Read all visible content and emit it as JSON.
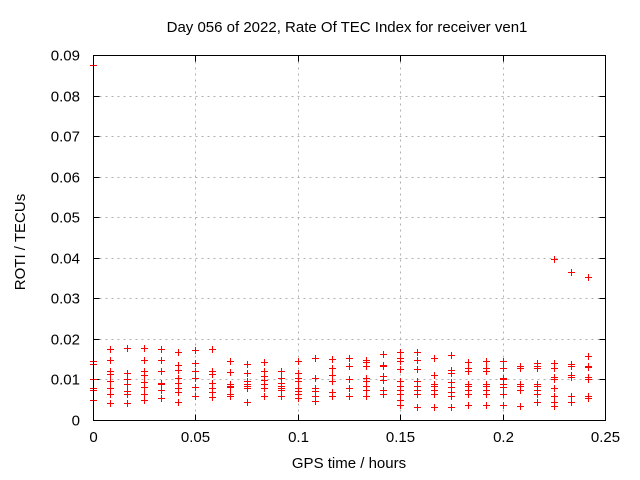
{
  "chart_data": {
    "type": "scatter",
    "title": "Day 056 of 2022, Rate Of TEC Index for receiver ven1",
    "xlabel": "GPS time / hours",
    "ylabel": "ROTI / TECUs",
    "xlim": [
      0,
      0.25
    ],
    "ylim": [
      0,
      0.09
    ],
    "xtick_values": [
      0,
      0.05,
      0.1,
      0.15,
      0.2,
      0.25
    ],
    "xtick_labels": [
      "0",
      "0.05",
      "0.1",
      "0.15",
      "0.2",
      "0.25"
    ],
    "ytick_values": [
      0,
      0.01,
      0.02,
      0.03,
      0.04,
      0.05,
      0.06,
      0.07,
      0.08,
      0.09
    ],
    "ytick_labels": [
      "0",
      "0.01",
      "0.02",
      "0.03",
      "0.04",
      "0.05",
      "0.06",
      "0.07",
      "0.08",
      "0.09"
    ],
    "grid": "dotted",
    "legend": "none",
    "marker": {
      "shape": "plus",
      "color": "#ff0000",
      "size": 7
    },
    "grid_color": "#b0b0b0",
    "border_color": "#000000",
    "points": [
      [
        0,
        0.0875
      ],
      [
        0,
        0.0145
      ],
      [
        0,
        0.0138
      ],
      [
        0,
        0.01
      ],
      [
        0,
        0.0078
      ],
      [
        0,
        0.0073
      ],
      [
        0,
        0.005
      ],
      [
        0.00833,
        0.0175
      ],
      [
        0.00833,
        0.0148
      ],
      [
        0.00833,
        0.012
      ],
      [
        0.00833,
        0.0114
      ],
      [
        0.00833,
        0.0095
      ],
      [
        0.00833,
        0.0078
      ],
      [
        0.00833,
        0.0063
      ],
      [
        0.00833,
        0.0042
      ],
      [
        0.01667,
        0.0177
      ],
      [
        0.01667,
        0.0117
      ],
      [
        0.01667,
        0.01
      ],
      [
        0.01667,
        0.0088
      ],
      [
        0.01667,
        0.0071
      ],
      [
        0.01667,
        0.0063
      ],
      [
        0.01667,
        0.0041
      ],
      [
        0.025,
        0.0177
      ],
      [
        0.025,
        0.0148
      ],
      [
        0.025,
        0.0122
      ],
      [
        0.025,
        0.011
      ],
      [
        0.025,
        0.0094
      ],
      [
        0.025,
        0.0082
      ],
      [
        0.025,
        0.0063
      ],
      [
        0.025,
        0.005
      ],
      [
        0.03333,
        0.0174
      ],
      [
        0.03333,
        0.0148
      ],
      [
        0.03333,
        0.0122
      ],
      [
        0.03333,
        0.0092
      ],
      [
        0.03333,
        0.0088
      ],
      [
        0.03333,
        0.0075
      ],
      [
        0.03333,
        0.0055
      ],
      [
        0.04167,
        0.0168
      ],
      [
        0.04167,
        0.0136
      ],
      [
        0.04167,
        0.0123
      ],
      [
        0.04167,
        0.0103
      ],
      [
        0.04167,
        0.0091
      ],
      [
        0.04167,
        0.008
      ],
      [
        0.04167,
        0.0068
      ],
      [
        0.04167,
        0.0045
      ],
      [
        0.05,
        0.0173
      ],
      [
        0.05,
        0.014
      ],
      [
        0.05,
        0.012
      ],
      [
        0.05,
        0.0103
      ],
      [
        0.05,
        0.0082
      ],
      [
        0.05,
        0.0058
      ],
      [
        0.05833,
        0.0175
      ],
      [
        0.05833,
        0.012
      ],
      [
        0.05833,
        0.0114
      ],
      [
        0.05833,
        0.0092
      ],
      [
        0.05833,
        0.0078
      ],
      [
        0.05833,
        0.0068
      ],
      [
        0.05833,
        0.0057
      ],
      [
        0.06667,
        0.0145
      ],
      [
        0.06667,
        0.0118
      ],
      [
        0.06667,
        0.009
      ],
      [
        0.06667,
        0.0085
      ],
      [
        0.06667,
        0.0082
      ],
      [
        0.06667,
        0.0063
      ],
      [
        0.06667,
        0.0058
      ],
      [
        0.075,
        0.0137
      ],
      [
        0.075,
        0.0115
      ],
      [
        0.075,
        0.0095
      ],
      [
        0.075,
        0.009
      ],
      [
        0.075,
        0.0085
      ],
      [
        0.075,
        0.008
      ],
      [
        0.075,
        0.0045
      ],
      [
        0.08333,
        0.0143
      ],
      [
        0.08333,
        0.0122
      ],
      [
        0.08333,
        0.0108
      ],
      [
        0.08333,
        0.0098
      ],
      [
        0.08333,
        0.009
      ],
      [
        0.08333,
        0.008
      ],
      [
        0.08333,
        0.006
      ],
      [
        0.09167,
        0.0121
      ],
      [
        0.09167,
        0.0104
      ],
      [
        0.09167,
        0.0092
      ],
      [
        0.09167,
        0.0085
      ],
      [
        0.09167,
        0.0078
      ],
      [
        0.09167,
        0.0075
      ],
      [
        0.09167,
        0.006
      ],
      [
        0.1,
        0.0145
      ],
      [
        0.1,
        0.0117
      ],
      [
        0.1,
        0.0104
      ],
      [
        0.1,
        0.0095
      ],
      [
        0.1,
        0.008
      ],
      [
        0.1,
        0.0072
      ],
      [
        0.1,
        0.0065
      ],
      [
        0.1,
        0.0055
      ],
      [
        0.10833,
        0.0153
      ],
      [
        0.10833,
        0.0104
      ],
      [
        0.10833,
        0.008
      ],
      [
        0.10833,
        0.0072
      ],
      [
        0.10833,
        0.006
      ],
      [
        0.10833,
        0.0046
      ],
      [
        0.11667,
        0.015
      ],
      [
        0.11667,
        0.0128
      ],
      [
        0.11667,
        0.011
      ],
      [
        0.11667,
        0.0097
      ],
      [
        0.11667,
        0.007
      ],
      [
        0.11667,
        0.006
      ],
      [
        0.125,
        0.0152
      ],
      [
        0.125,
        0.0133
      ],
      [
        0.125,
        0.0101
      ],
      [
        0.125,
        0.008
      ],
      [
        0.125,
        0.0058
      ],
      [
        0.13333,
        0.0148
      ],
      [
        0.13333,
        0.0143
      ],
      [
        0.13333,
        0.0133
      ],
      [
        0.13333,
        0.0104
      ],
      [
        0.13333,
        0.0095
      ],
      [
        0.13333,
        0.0085
      ],
      [
        0.13333,
        0.0075
      ],
      [
        0.13333,
        0.006
      ],
      [
        0.14167,
        0.0162
      ],
      [
        0.14167,
        0.0136
      ],
      [
        0.14167,
        0.0134
      ],
      [
        0.14167,
        0.0108
      ],
      [
        0.14167,
        0.0098
      ],
      [
        0.14167,
        0.0075
      ],
      [
        0.14167,
        0.0065
      ],
      [
        0.15,
        0.0168
      ],
      [
        0.15,
        0.0152
      ],
      [
        0.15,
        0.0145
      ],
      [
        0.15,
        0.0125
      ],
      [
        0.15,
        0.0095
      ],
      [
        0.15,
        0.0085
      ],
      [
        0.15,
        0.0075
      ],
      [
        0.15,
        0.0065
      ],
      [
        0.15,
        0.005
      ],
      [
        0.15,
        0.0037
      ],
      [
        0.15833,
        0.0168
      ],
      [
        0.15833,
        0.0148
      ],
      [
        0.15833,
        0.0125
      ],
      [
        0.15833,
        0.0095
      ],
      [
        0.15833,
        0.0085
      ],
      [
        0.15833,
        0.0075
      ],
      [
        0.15833,
        0.0065
      ],
      [
        0.15833,
        0.0033
      ],
      [
        0.16667,
        0.0152
      ],
      [
        0.16667,
        0.011
      ],
      [
        0.16667,
        0.009
      ],
      [
        0.16667,
        0.0085
      ],
      [
        0.16667,
        0.0075
      ],
      [
        0.16667,
        0.0065
      ],
      [
        0.16667,
        0.0033
      ],
      [
        0.175,
        0.016
      ],
      [
        0.175,
        0.0123
      ],
      [
        0.175,
        0.0115
      ],
      [
        0.175,
        0.0094
      ],
      [
        0.175,
        0.0082
      ],
      [
        0.175,
        0.007
      ],
      [
        0.175,
        0.0058
      ],
      [
        0.175,
        0.0033
      ],
      [
        0.18333,
        0.0143
      ],
      [
        0.18333,
        0.0127
      ],
      [
        0.18333,
        0.012
      ],
      [
        0.18333,
        0.009
      ],
      [
        0.18333,
        0.0085
      ],
      [
        0.18333,
        0.0075
      ],
      [
        0.18333,
        0.0065
      ],
      [
        0.18333,
        0.0037
      ],
      [
        0.19167,
        0.0145
      ],
      [
        0.19167,
        0.0127
      ],
      [
        0.19167,
        0.012
      ],
      [
        0.19167,
        0.009
      ],
      [
        0.19167,
        0.0085
      ],
      [
        0.19167,
        0.0075
      ],
      [
        0.19167,
        0.0065
      ],
      [
        0.19167,
        0.0037
      ],
      [
        0.2,
        0.0145
      ],
      [
        0.2,
        0.0127
      ],
      [
        0.2,
        0.0103
      ],
      [
        0.2,
        0.01
      ],
      [
        0.2,
        0.009
      ],
      [
        0.2,
        0.0082
      ],
      [
        0.2,
        0.0065
      ],
      [
        0.2,
        0.0037
      ],
      [
        0.20833,
        0.0133
      ],
      [
        0.20833,
        0.0127
      ],
      [
        0.20833,
        0.009
      ],
      [
        0.20833,
        0.0085
      ],
      [
        0.20833,
        0.0075
      ],
      [
        0.20833,
        0.0035
      ],
      [
        0.21667,
        0.014
      ],
      [
        0.21667,
        0.0133
      ],
      [
        0.21667,
        0.0127
      ],
      [
        0.21667,
        0.009
      ],
      [
        0.21667,
        0.0085
      ],
      [
        0.21667,
        0.0075
      ],
      [
        0.21667,
        0.0065
      ],
      [
        0.21667,
        0.0045
      ],
      [
        0.225,
        0.0396
      ],
      [
        0.225,
        0.014
      ],
      [
        0.225,
        0.0128
      ],
      [
        0.225,
        0.0105
      ],
      [
        0.225,
        0.0102
      ],
      [
        0.225,
        0.008
      ],
      [
        0.225,
        0.0058
      ],
      [
        0.225,
        0.0045
      ],
      [
        0.225,
        0.0035
      ],
      [
        0.23333,
        0.0365
      ],
      [
        0.23333,
        0.0138
      ],
      [
        0.23333,
        0.0132
      ],
      [
        0.23333,
        0.0112
      ],
      [
        0.23333,
        0.0105
      ],
      [
        0.23333,
        0.006
      ],
      [
        0.23333,
        0.0045
      ],
      [
        0.24167,
        0.0352
      ],
      [
        0.24167,
        0.0158
      ],
      [
        0.24167,
        0.0133
      ],
      [
        0.24167,
        0.013
      ],
      [
        0.24167,
        0.0106
      ],
      [
        0.24167,
        0.0102
      ],
      [
        0.24167,
        0.006
      ],
      [
        0.24167,
        0.0055
      ]
    ]
  }
}
